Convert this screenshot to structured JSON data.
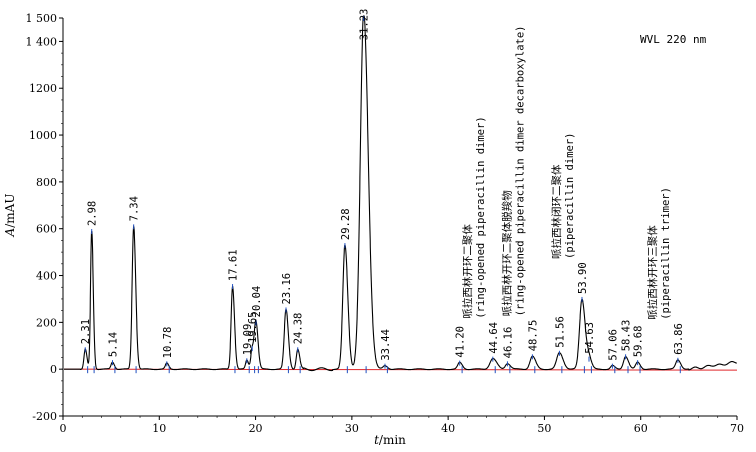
{
  "chart_data": {
    "type": "line",
    "title": "",
    "detector_label": "WVL 220 nm",
    "xlabel_var": "t",
    "xlabel_unit": "/min",
    "ylabel_var": "A",
    "ylabel_unit": "/mAU",
    "xlim": [
      0,
      70
    ],
    "ylim": [
      -200,
      1500
    ],
    "x_ticks": [
      0,
      10,
      20,
      30,
      40,
      50,
      60,
      70
    ],
    "y_ticks": [
      -200,
      0,
      200,
      400,
      600,
      800,
      1000,
      1200,
      1400,
      1500
    ],
    "y_tick_labels": [
      "-200",
      "0",
      "200",
      "400",
      "600",
      "800",
      "1000",
      "1200",
      "1 400",
      "1 500"
    ],
    "baseline": 0,
    "peaks": [
      {
        "rt": 2.31,
        "label": "2.31",
        "height": 85,
        "width": 0.13
      },
      {
        "rt": 2.98,
        "label": "2.98",
        "height": 590,
        "width": 0.12
      },
      {
        "rt": 5.14,
        "label": "5.14",
        "height": 30,
        "width": 0.15
      },
      {
        "rt": 7.34,
        "label": "7.34",
        "height": 610,
        "width": 0.16
      },
      {
        "rt": 10.78,
        "label": "10.78",
        "height": 25,
        "width": 0.15
      },
      {
        "rt": 17.61,
        "label": "17.61",
        "height": 355,
        "width": 0.15
      },
      {
        "rt": 19.09,
        "label": "19.09",
        "height": 38,
        "width": 0.13
      },
      {
        "rt": 19.65,
        "label": "19.65",
        "height": 90,
        "width": 0.14
      },
      {
        "rt": 20.04,
        "label": "20.04",
        "height": 200,
        "width": 0.16
      },
      {
        "rt": 23.16,
        "label": "23.16",
        "height": 255,
        "width": 0.18
      },
      {
        "rt": 24.38,
        "label": "24.38",
        "height": 85,
        "width": 0.15
      },
      {
        "rt": 29.28,
        "label": "29.28",
        "height": 530,
        "width": 0.22
      },
      {
        "rt": 31.23,
        "label": "31.23",
        "height": 1520,
        "width": 0.35
      },
      {
        "rt": 33.44,
        "label": "33.44",
        "height": 15,
        "width": 0.2
      },
      {
        "rt": 41.2,
        "label": "41.20",
        "height": 28,
        "width": 0.2
      },
      {
        "rt": 44.64,
        "label": "44.64",
        "height": 45,
        "width": 0.3
      },
      {
        "rt": 46.16,
        "label": "46.16",
        "height": 25,
        "width": 0.22
      },
      {
        "rt": 48.75,
        "label": "48.75",
        "height": 55,
        "width": 0.25
      },
      {
        "rt": 51.56,
        "label": "51.56",
        "height": 70,
        "width": 0.28
      },
      {
        "rt": 53.9,
        "label": "53.90",
        "height": 300,
        "width": 0.25
      },
      {
        "rt": 54.63,
        "label": "54.63",
        "height": 45,
        "width": 0.2
      },
      {
        "rt": 57.06,
        "label": "57.06",
        "height": 15,
        "width": 0.18
      },
      {
        "rt": 58.43,
        "label": "58.43",
        "height": 55,
        "width": 0.22
      },
      {
        "rt": 59.68,
        "label": "59.68",
        "height": 30,
        "width": 0.2
      },
      {
        "rt": 63.86,
        "label": "63.86",
        "height": 40,
        "width": 0.22
      }
    ],
    "annotations": [
      {
        "rt": 44.64,
        "lines": [
          "哌拉西林开环二聚体",
          "(ring-opened piperacillin dimer)"
        ]
      },
      {
        "rt": 48.75,
        "lines": [
          "哌拉西林开环二聚体脱羧物",
          "(ring-opened piperacillin dimer decarboxylate)"
        ]
      },
      {
        "rt": 53.9,
        "lines": [
          "哌拉西林闭环二聚体",
          "(piperacillin dimer)"
        ]
      },
      {
        "rt": 63.86,
        "lines": [
          "哌拉西林开环三聚体",
          "(piperacillin trimer)"
        ]
      }
    ],
    "colors": {
      "trace": "#000000",
      "baseline": "#e0262a",
      "marker": "#1f4fbf"
    }
  }
}
